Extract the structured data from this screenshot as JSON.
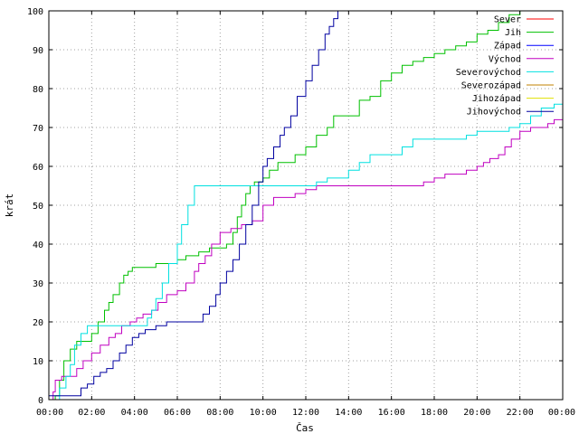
{
  "chart_data": {
    "type": "line",
    "xlabel": "Čas",
    "ylabel": "krát",
    "xlim": [
      0,
      24
    ],
    "ylim": [
      0,
      100
    ],
    "x_ticks": [
      {
        "value": 0,
        "label": "00:00"
      },
      {
        "value": 2,
        "label": "02:00"
      },
      {
        "value": 4,
        "label": "04:00"
      },
      {
        "value": 6,
        "label": "06:00"
      },
      {
        "value": 8,
        "label": "08:00"
      },
      {
        "value": 10,
        "label": "10:00"
      },
      {
        "value": 12,
        "label": "12:00"
      },
      {
        "value": 14,
        "label": "14:00"
      },
      {
        "value": 16,
        "label": "16:00"
      },
      {
        "value": 18,
        "label": "18:00"
      },
      {
        "value": 20,
        "label": "20:00"
      },
      {
        "value": 22,
        "label": "22:00"
      },
      {
        "value": 24,
        "label": "00:00"
      }
    ],
    "y_ticks": [
      0,
      10,
      20,
      30,
      40,
      50,
      60,
      70,
      80,
      90,
      100
    ],
    "legend_position": "top-right",
    "series": [
      {
        "name": "Sever",
        "color": "#ff0000",
        "x": [],
        "y": []
      },
      {
        "name": "Jih",
        "color": "#00c000",
        "x": [
          0,
          0.3,
          0.5,
          0.7,
          1.0,
          1.3,
          1.6,
          2.0,
          2.3,
          2.6,
          2.8,
          3.0,
          3.3,
          3.5,
          3.7,
          3.9,
          4.0,
          4.2,
          4.5,
          5.0,
          5.5,
          6.0,
          6.4,
          7.0,
          7.5,
          8.0,
          8.3,
          8.6,
          8.8,
          9.0,
          9.2,
          9.4,
          9.6,
          10.0,
          10.3,
          10.7,
          11.0,
          11.5,
          12.0,
          12.5,
          13.0,
          13.3,
          13.6,
          14.0,
          14.5,
          15.0,
          15.5,
          16.0,
          16.5,
          17.0,
          17.5,
          18.0,
          18.5,
          19.0,
          19.5,
          20.0,
          20.5,
          21.0,
          21.5,
          22.0
        ],
        "y": [
          0,
          1,
          5,
          10,
          13,
          15,
          15,
          17,
          20,
          23,
          25,
          27,
          30,
          32,
          33,
          34,
          34,
          34,
          34,
          35,
          35,
          36,
          37,
          38,
          39,
          39,
          40,
          43,
          47,
          50,
          53,
          55,
          56,
          57,
          59,
          61,
          61,
          63,
          65,
          68,
          70,
          73,
          73,
          73,
          77,
          78,
          82,
          84,
          86,
          87,
          88,
          89,
          90,
          91,
          92,
          94,
          95,
          97,
          99,
          100
        ]
      },
      {
        "name": "Západ",
        "color": "#0000ff",
        "x": [],
        "y": []
      },
      {
        "name": "Východ",
        "color": "#c000c0",
        "x": [
          0,
          0.2,
          0.3,
          0.6,
          1.0,
          1.3,
          1.6,
          2.0,
          2.4,
          2.8,
          3.1,
          3.4,
          3.8,
          4.1,
          4.4,
          4.8,
          5.1,
          5.5,
          6.0,
          6.4,
          6.8,
          7.0,
          7.3,
          7.6,
          8.0,
          8.5,
          9.0,
          9.5,
          10.0,
          10.5,
          11.0,
          11.5,
          12.0,
          12.5,
          13.0,
          14.0,
          15.0,
          16.0,
          17.0,
          17.5,
          18.0,
          18.5,
          19.0,
          19.5,
          20.0,
          20.3,
          20.6,
          21.0,
          21.3,
          21.6,
          22.0,
          22.5,
          23.0,
          23.3,
          23.6,
          24.0
        ],
        "y": [
          0,
          2,
          5,
          6,
          6,
          8,
          10,
          12,
          14,
          16,
          17,
          19,
          20,
          21,
          22,
          23,
          25,
          27,
          28,
          30,
          33,
          35,
          37,
          40,
          43,
          44,
          45,
          46,
          50,
          52,
          52,
          53,
          54,
          55,
          55,
          55,
          55,
          55,
          55,
          56,
          57,
          58,
          58,
          59,
          60,
          61,
          62,
          63,
          65,
          67,
          69,
          70,
          70,
          71,
          72,
          72
        ]
      },
      {
        "name": "Severovýchod",
        "color": "#00e0e0",
        "x": [
          0,
          0.3,
          0.5,
          0.8,
          1.0,
          1.2,
          1.5,
          1.8,
          2.0,
          2.2,
          2.4,
          2.6,
          2.8,
          3.0,
          3.3,
          3.6,
          4.0,
          4.3,
          4.6,
          4.8,
          5.0,
          5.3,
          5.6,
          6.0,
          6.2,
          6.5,
          6.8,
          7.0,
          8.0,
          9.0,
          10.0,
          11.0,
          12.0,
          12.5,
          13.0,
          14.0,
          14.5,
          15.0,
          15.5,
          16.0,
          16.5,
          17.0,
          17.5,
          18.0,
          18.5,
          19.0,
          19.5,
          20.0,
          20.5,
          21.0,
          21.5,
          22.0,
          22.5,
          23.0,
          23.3,
          23.6,
          24.0
        ],
        "y": [
          0,
          0,
          3,
          6,
          9,
          14,
          17,
          19,
          19,
          19,
          19,
          19,
          19,
          19,
          19,
          19,
          19,
          19,
          21,
          23,
          26,
          30,
          35,
          40,
          45,
          50,
          55,
          55,
          55,
          55,
          55,
          55,
          55,
          56,
          57,
          59,
          61,
          63,
          63,
          63,
          65,
          67,
          67,
          67,
          67,
          67,
          68,
          69,
          69,
          69,
          70,
          71,
          73,
          75,
          75,
          76,
          77
        ]
      },
      {
        "name": "Severozápad",
        "color": "#c08000",
        "x": [],
        "y": []
      },
      {
        "name": "Jihozápad",
        "color": "#e0e000",
        "x": [],
        "y": []
      },
      {
        "name": "Jihovýchod",
        "color": "#0000a0",
        "x": [
          0,
          0.5,
          1.0,
          1.5,
          1.8,
          2.1,
          2.4,
          2.7,
          3.0,
          3.3,
          3.6,
          3.9,
          4.2,
          4.5,
          5.0,
          5.5,
          6.0,
          6.5,
          7.0,
          7.2,
          7.5,
          7.8,
          8.0,
          8.3,
          8.6,
          8.9,
          9.2,
          9.5,
          9.8,
          10.0,
          10.2,
          10.5,
          10.8,
          11.0,
          11.3,
          11.6,
          12.0,
          12.3,
          12.6,
          12.9,
          13.1,
          13.3,
          13.5
        ],
        "y": [
          1,
          1,
          1,
          3,
          4,
          6,
          7,
          8,
          10,
          12,
          14,
          16,
          17,
          18,
          19,
          20,
          20,
          20,
          20,
          22,
          24,
          27,
          30,
          33,
          36,
          40,
          45,
          50,
          56,
          60,
          62,
          65,
          68,
          70,
          73,
          78,
          82,
          86,
          90,
          94,
          96,
          98,
          100
        ]
      }
    ]
  }
}
